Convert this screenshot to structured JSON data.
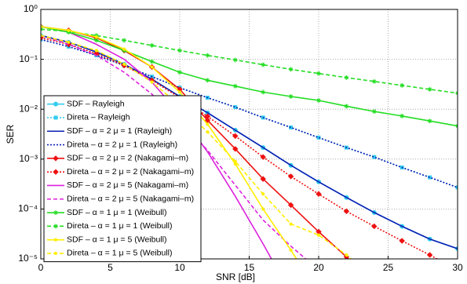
{
  "chart_data": {
    "type": "line",
    "xlabel": "SNR [dB]",
    "ylabel": "SER",
    "yscale": "log",
    "grid": true,
    "legend": "lower left",
    "x": [
      0,
      2,
      4,
      6,
      8,
      10,
      12,
      14,
      16,
      18,
      20,
      22,
      24,
      26,
      28,
      30
    ],
    "xlim": [
      0,
      30
    ],
    "xticks": [
      0,
      5,
      10,
      15,
      20,
      25,
      30
    ],
    "ylim": [
      1e-05,
      1
    ],
    "yticks": [
      {
        "value": 1e-05,
        "label": "10⁻⁵"
      },
      {
        "value": 0.0001,
        "label": "10⁻⁴"
      },
      {
        "value": 0.001,
        "label": "10⁻³"
      },
      {
        "value": 0.01,
        "label": "10⁻²"
      },
      {
        "value": 0.1,
        "label": "10⁻¹"
      },
      {
        "value": 1,
        "label": "10⁰"
      }
    ],
    "series": [
      {
        "name": "SDF – Rayleigh",
        "color": "#33ccee",
        "dash": "solid",
        "marker": "circle",
        "values": [
          0.3,
          0.22,
          0.14,
          0.08,
          0.04,
          0.018,
          0.0085,
          0.0038,
          0.0017,
          0.00075,
          0.00035,
          0.00017,
          8.5e-05,
          4.5e-05,
          2.5e-05,
          1.6e-05
        ]
      },
      {
        "name": "Direta – Rayleigh",
        "color": "#33ccee",
        "dash": "dotted",
        "marker": "square",
        "values": [
          0.25,
          0.18,
          0.12,
          0.075,
          0.045,
          0.027,
          0.017,
          0.011,
          0.0068,
          0.0043,
          0.0027,
          0.0017,
          0.0011,
          0.00068,
          0.00043,
          0.00027
        ]
      },
      {
        "name": "SDF – α = 2 μ = 1 (Rayleigh)",
        "color": "#0a1fb4",
        "dash": "solid",
        "marker": "none",
        "values": [
          0.3,
          0.22,
          0.14,
          0.08,
          0.04,
          0.018,
          0.0085,
          0.0038,
          0.0017,
          0.00075,
          0.00035,
          0.00017,
          8.5e-05,
          4.5e-05,
          2.5e-05,
          1.6e-05
        ]
      },
      {
        "name": "Direta – α = 2 μ = 1 (Rayleigh)",
        "color": "#0a1fb4",
        "dash": "dotted",
        "marker": "none",
        "values": [
          0.25,
          0.18,
          0.12,
          0.075,
          0.045,
          0.027,
          0.017,
          0.011,
          0.0068,
          0.0043,
          0.0027,
          0.0017,
          0.0011,
          0.00068,
          0.00043,
          0.00027
        ]
      },
      {
        "name": "SDF – α = 2 μ = 2 (Nakagami–m)",
        "color": "#ee1111",
        "dash": "solid",
        "marker": "diamond",
        "values": [
          0.45,
          0.38,
          0.27,
          0.15,
          0.07,
          0.025,
          0.006,
          0.0016,
          0.0004,
          0.00012,
          3.5e-05,
          1.1e-05,
          3e-06,
          null,
          null,
          null
        ]
      },
      {
        "name": "Direta – α = 2 μ = 2 (Nakagami–m)",
        "color": "#ee1111",
        "dash": "dotted",
        "marker": "diamond",
        "values": [
          0.27,
          0.2,
          0.13,
          0.075,
          0.038,
          0.017,
          0.0072,
          0.0029,
          0.0011,
          0.00045,
          0.0002,
          9e-05,
          4.5e-05,
          2.3e-05,
          1.2e-05,
          6e-06
        ]
      },
      {
        "name": "SDF – α = 2 μ = 5 (Nakagami–m)",
        "color": "#dd22dd",
        "dash": "solid",
        "marker": "none",
        "values": [
          0.45,
          0.35,
          0.2,
          0.1,
          0.035,
          0.008,
          0.0014,
          0.00018,
          2e-05,
          2e-06,
          null,
          null,
          null,
          null,
          null,
          null
        ]
      },
      {
        "name": "Direta – α = 2 μ = 5 (Nakagami–m)",
        "color": "#dd22dd",
        "dash": "dashed",
        "marker": "none",
        "values": [
          0.3,
          0.2,
          0.12,
          0.055,
          0.02,
          0.006,
          0.0015,
          0.0003,
          6e-05,
          1.8e-05,
          6e-06,
          null,
          null,
          null,
          null,
          null
        ]
      },
      {
        "name": "SDF – α = 1 μ = 1 (Weibull)",
        "color": "#22dd22",
        "dash": "solid",
        "marker": "star",
        "values": [
          0.45,
          0.35,
          0.24,
          0.15,
          0.09,
          0.055,
          0.038,
          0.029,
          0.022,
          0.018,
          0.015,
          0.0115,
          0.009,
          0.0073,
          0.0058,
          0.0046
        ]
      },
      {
        "name": "Direta – α = 1 μ = 1 (Weibull)",
        "color": "#22dd22",
        "dash": "dashed",
        "marker": "star",
        "values": [
          0.4,
          0.36,
          0.3,
          0.24,
          0.19,
          0.15,
          0.12,
          0.097,
          0.078,
          0.063,
          0.052,
          0.043,
          0.036,
          0.03,
          0.025,
          0.021
        ]
      },
      {
        "name": "SDF – α = 1 μ = 5 (Weibull)",
        "color": "#ffee00",
        "dash": "solid",
        "marker": "dot",
        "values": [
          0.45,
          0.38,
          0.28,
          0.16,
          0.07,
          0.022,
          0.005,
          0.0008,
          0.0001,
          1.5e-05,
          2e-06,
          null,
          null,
          null,
          null,
          null
        ]
      },
      {
        "name": "Direta – α = 1 μ = 5 (Weibull)",
        "color": "#ffee00",
        "dash": "dashed",
        "marker": "dot",
        "values": [
          0.3,
          0.22,
          0.15,
          0.08,
          0.035,
          0.012,
          0.0035,
          0.0009,
          0.0002,
          5e-05,
          3e-05,
          1.2e-05,
          4e-06,
          null,
          null,
          null
        ]
      }
    ]
  }
}
